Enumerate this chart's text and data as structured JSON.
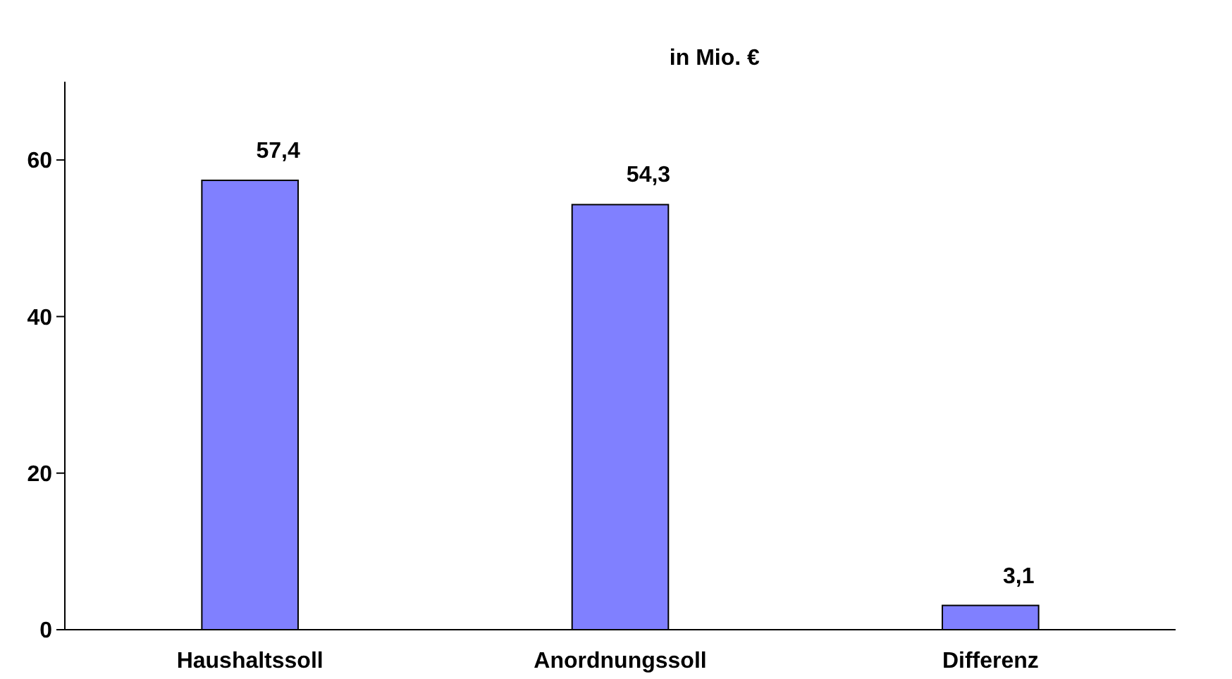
{
  "chart_data": {
    "type": "bar",
    "title": "in Mio. €",
    "categories": [
      "Haushaltssoll",
      "Anordnungssoll",
      "Differenz"
    ],
    "values": [
      57.4,
      54.3,
      3.1
    ],
    "value_labels": [
      "57,4",
      "54,3",
      "3,1"
    ],
    "color": "#8080ff",
    "ylim": [
      0,
      70
    ],
    "yticks": [
      0,
      20,
      40,
      60
    ]
  }
}
